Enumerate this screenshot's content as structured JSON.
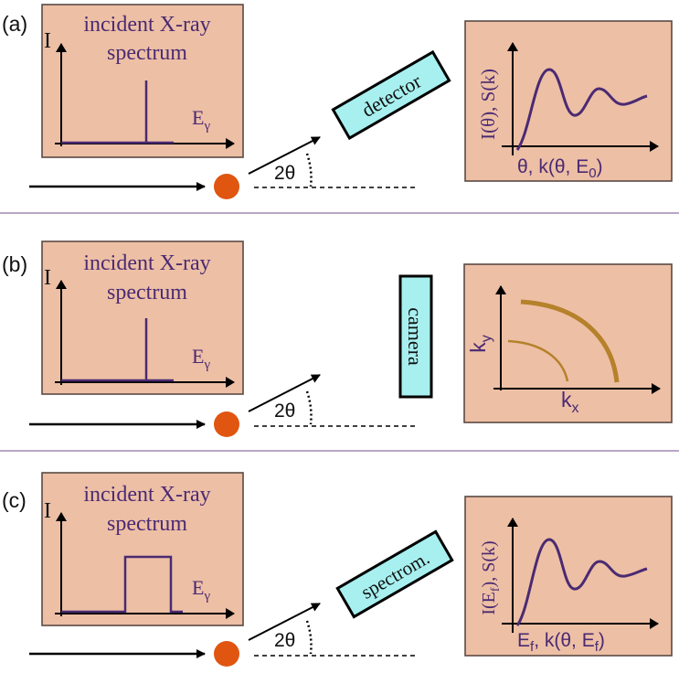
{
  "panels": {
    "a": {
      "tag": "(a)",
      "spectrum_title_1": "incident X-ray",
      "spectrum_title_2": "spectrum",
      "y_axis": "I",
      "x_axis": "E",
      "x_axis_sub": "γ",
      "angle": "2θ",
      "detector": "detector",
      "plot_ylabel": "I(θ), S(k)",
      "plot_xlabel": "θ, k(θ, E",
      "plot_xlabel_sub": "0",
      "plot_xlabel_end": ")"
    },
    "b": {
      "tag": "(b)",
      "spectrum_title_1": "incident X-ray",
      "spectrum_title_2": "spectrum",
      "y_axis": "I",
      "x_axis": "E",
      "x_axis_sub": "γ",
      "angle": "2θ",
      "detector": "camera",
      "plot_ylabel": "k",
      "plot_ylabel_sub": "y",
      "plot_xlabel": "k",
      "plot_xlabel_sub": "x"
    },
    "c": {
      "tag": "(c)",
      "spectrum_title_1": "incident X-ray",
      "spectrum_title_2": "spectrum",
      "y_axis": "I",
      "x_axis": "E",
      "x_axis_sub": "γ",
      "angle": "2θ",
      "detector": "spectrom.",
      "plot_ylabel_a": "I(E",
      "plot_ylabel_sub": "f",
      "plot_ylabel_b": "), S(k)",
      "plot_xlabel_a": "E",
      "plot_xlabel_sub1": "f",
      "plot_xlabel_b": ", k(θ, E",
      "plot_xlabel_sub2": "f",
      "plot_xlabel_c": ")"
    }
  },
  "colors": {
    "box": "#edbfa5",
    "curve": "#4a2a72",
    "ring": "#b5812a",
    "detector": "#a8f0f0",
    "sample": "#e05510",
    "divider": "#b9a6c6"
  }
}
